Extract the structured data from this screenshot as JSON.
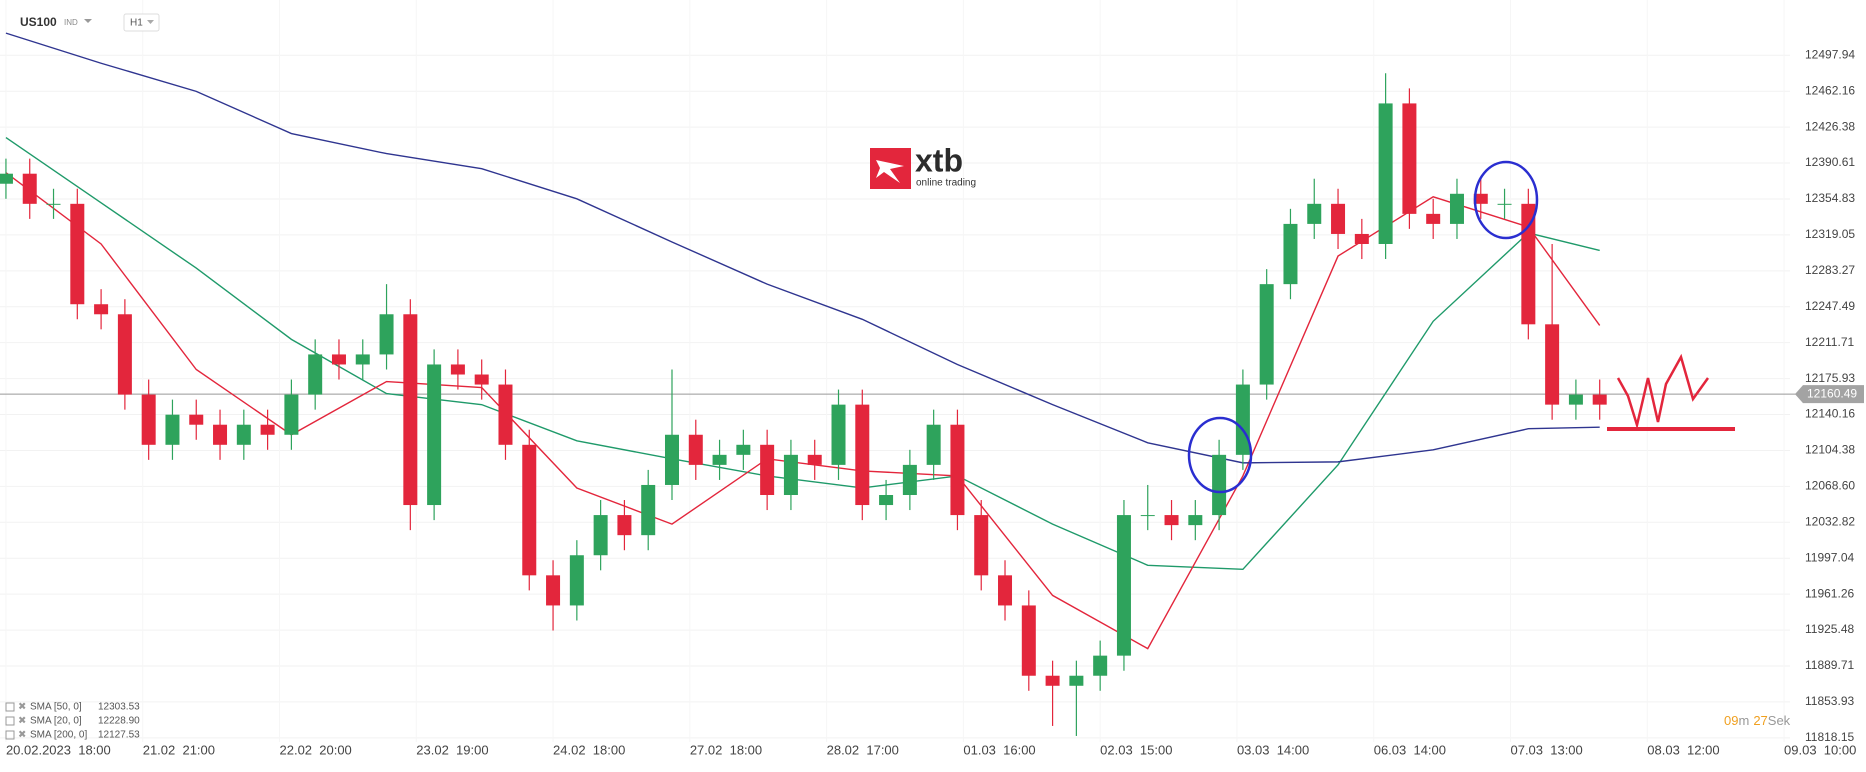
{
  "header": {
    "symbol": "US100",
    "market": "IND",
    "interval": "H1"
  },
  "logo": {
    "name": "xtb",
    "tagline": "online trading"
  },
  "timer": {
    "minutes": "09",
    "minutes_unit": "m",
    "seconds": "27",
    "seconds_unit": "Sek"
  },
  "chart_data": {
    "type": "candlestick",
    "x": [
      0,
      4,
      8,
      12,
      16,
      20,
      24,
      28,
      32,
      36,
      40,
      44,
      48,
      52,
      56,
      60,
      64,
      68,
      72,
      76,
      80,
      84,
      88,
      92,
      96,
      100,
      104,
      108,
      112,
      116,
      120,
      124,
      128,
      132,
      136,
      140,
      144,
      148,
      152,
      156,
      160,
      164,
      168,
      172,
      176,
      180,
      184,
      188,
      192,
      196,
      200,
      204,
      208,
      212,
      216,
      220,
      224,
      228,
      232,
      236,
      240,
      244,
      248,
      252,
      256,
      260,
      264,
      268
    ],
    "open": [
      12370,
      12380,
      12350,
      12350,
      12250,
      12240,
      12160,
      12110,
      12140,
      12130,
      12110,
      12130,
      12120,
      12160,
      12200,
      12190,
      12200,
      12240,
      12050,
      12190,
      12180,
      12170,
      12110,
      11980,
      11950,
      12000,
      12040,
      12020,
      12070,
      12120,
      12090,
      12100,
      12110,
      12060,
      12100,
      12090,
      12150,
      12050,
      12060,
      12090,
      12130,
      12040,
      11980,
      11950,
      11880,
      11870,
      11880,
      11900,
      12040,
      12040,
      12030,
      12040,
      12100,
      12170,
      12270,
      12330,
      12350,
      12320,
      12310,
      12450,
      12340,
      12330,
      12360,
      12350,
      12350,
      12230,
      12150,
      12160
    ],
    "high": [
      12395,
      12395,
      12365,
      12365,
      12265,
      12255,
      12175,
      12155,
      12155,
      12145,
      12145,
      12145,
      12175,
      12215,
      12215,
      12215,
      12270,
      12255,
      12205,
      12205,
      12195,
      12185,
      12125,
      11995,
      12015,
      12055,
      12055,
      12085,
      12185,
      12135,
      12115,
      12125,
      12125,
      12115,
      12115,
      12165,
      12165,
      12075,
      12105,
      12145,
      12145,
      12055,
      11995,
      11965,
      11895,
      11895,
      11915,
      12055,
      12070,
      12055,
      12055,
      12115,
      12185,
      12285,
      12345,
      12375,
      12365,
      12335,
      12480,
      12465,
      12355,
      12375,
      12375,
      12365,
      12365,
      12310,
      12175,
      12175
    ],
    "low": [
      12355,
      12335,
      12335,
      12235,
      12225,
      12145,
      12095,
      12095,
      12115,
      12095,
      12095,
      12105,
      12105,
      12145,
      12175,
      12175,
      12185,
      12025,
      12035,
      12165,
      12155,
      12095,
      11965,
      11925,
      11935,
      11985,
      12005,
      12005,
      12055,
      12075,
      12075,
      12085,
      12045,
      12045,
      12075,
      12075,
      12035,
      12035,
      12045,
      12075,
      12025,
      11965,
      11935,
      11865,
      11830,
      11820,
      11865,
      11885,
      12025,
      12015,
      12015,
      12025,
      12085,
      12155,
      12255,
      12315,
      12305,
      12295,
      12295,
      12325,
      12315,
      12315,
      12335,
      12335,
      12215,
      12135,
      12135,
      12135
    ],
    "close": [
      12380,
      12350,
      12350,
      12250,
      12240,
      12160,
      12110,
      12140,
      12130,
      12110,
      12130,
      12120,
      12160,
      12200,
      12190,
      12200,
      12240,
      12050,
      12190,
      12180,
      12170,
      12110,
      11980,
      11950,
      12000,
      12040,
      12020,
      12070,
      12120,
      12090,
      12100,
      12110,
      12060,
      12100,
      12090,
      12150,
      12050,
      12060,
      12090,
      12130,
      12040,
      11980,
      11950,
      11880,
      11870,
      11880,
      11900,
      12040,
      12040,
      12030,
      12040,
      12100,
      12170,
      12270,
      12330,
      12350,
      12320,
      12310,
      12450,
      12340,
      12330,
      12360,
      12350,
      12350,
      12230,
      12150,
      12160,
      12150
    ],
    "up_color": "#2ea35c",
    "down_color": "#e3263c",
    "series": [
      {
        "name": "SMA [50, 0]",
        "last_label": "12303.53",
        "color": "#1f9a6a",
        "x": [
          0,
          16,
          32,
          48,
          64,
          80,
          96,
          112,
          128,
          144,
          160,
          176,
          192,
          208,
          224,
          240,
          256,
          268
        ],
        "values": [
          12416,
          12351,
          12286,
          12215,
          12161,
          12150,
          12114,
          12096,
          12079,
          12067,
          12079,
          12031,
          11990,
          11986,
          12090,
          12233,
          12321,
          12303.53
        ]
      },
      {
        "name": "SMA [20, 0]",
        "last_label": "12228.90",
        "color": "#e3263c",
        "x": [
          0,
          16,
          32,
          48,
          64,
          80,
          96,
          112,
          128,
          144,
          160,
          176,
          192,
          208,
          224,
          240,
          256,
          268
        ],
        "values": [
          12381,
          12310,
          12185,
          12120,
          12173,
          12167,
          12067,
          12031,
          12096,
          12084,
          12079,
          11960,
          11907,
          12079,
          12298,
          12357,
          12327,
          12228.9
        ]
      },
      {
        "name": "SMA [200, 0]",
        "last_label": "12127.53",
        "color": "#2f3590",
        "x": [
          0,
          16,
          32,
          48,
          64,
          80,
          96,
          112,
          128,
          144,
          160,
          176,
          192,
          208,
          224,
          240,
          256,
          268
        ],
        "values": [
          12520,
          12490,
          12462,
          12420,
          12400,
          12385,
          12355,
          12312,
          12270,
          12235,
          12190,
          12150,
          12112,
          12092,
          12093,
          12105,
          12126,
          12127.53
        ]
      }
    ],
    "current_price": 12160.49,
    "xlim": [
      -1,
      300
    ],
    "ylim": [
      11814,
      12553
    ],
    "yticks": [
      11818.15,
      11853.93,
      11889.71,
      11925.48,
      11961.26,
      11997.04,
      12032.82,
      {
        "value": 12068.6,
        "label": "12068.60"
      },
      12104.38,
      12140.16,
      12175.93,
      12211.71,
      12247.49,
      12283.27,
      12319.05,
      12354.83,
      12390.61,
      12426.38,
      12462.16,
      12497.94
    ],
    "xticks": [
      {
        "value": 0,
        "label": "20.02.2023  18:00"
      },
      {
        "value": 23,
        "label": "21.02  21:00"
      },
      {
        "value": 46,
        "label": "22.02  20:00"
      },
      {
        "value": 69,
        "label": "23.02  19:00"
      },
      {
        "value": 92,
        "label": "24.02  18:00"
      },
      {
        "value": 115,
        "label": "27.02  18:00"
      },
      {
        "value": 138,
        "label": "28.02  17:00"
      },
      {
        "value": 161,
        "label": "01.03  16:00"
      },
      {
        "value": 184,
        "label": "02.03  15:00"
      },
      {
        "value": 207,
        "label": "03.03  14:00"
      },
      {
        "value": 230,
        "label": "06.03  14:00"
      },
      {
        "value": 253,
        "label": "07.03  13:00"
      },
      {
        "value": 276,
        "label": "08.03  12:00"
      },
      {
        "value": 299,
        "label": "09.03  10:00"
      }
    ],
    "grid": true
  }
}
